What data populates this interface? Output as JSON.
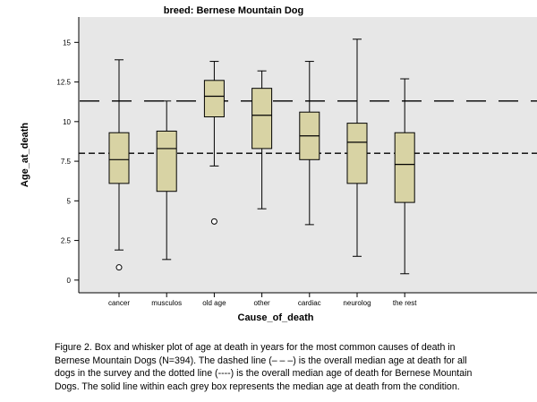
{
  "chart_data": {
    "type": "box",
    "title": "breed: Bernese Mountain Dog",
    "xlabel": "Cause_of_death",
    "ylabel": "Age_at_death",
    "ylim": [
      -0.8,
      16.6
    ],
    "yticks": [
      0,
      2.5,
      5,
      7.5,
      10,
      12.5,
      15
    ],
    "ytick_labels": [
      "0",
      "2.5",
      "5",
      "7.5",
      "10",
      "12.5",
      "15"
    ],
    "categories": [
      "cancer",
      "musculos",
      "old age",
      "other",
      "cardiac",
      "neurolog",
      "the rest"
    ],
    "boxes": [
      {
        "category": "cancer",
        "whisker_low": 1.9,
        "q1": 6.1,
        "median": 7.6,
        "q3": 9.3,
        "whisker_high": 13.9,
        "outliers": [
          0.8
        ]
      },
      {
        "category": "musculos",
        "whisker_low": 1.3,
        "q1": 5.6,
        "median": 8.3,
        "q3": 9.4,
        "whisker_high": 11.3,
        "outliers": []
      },
      {
        "category": "old age",
        "whisker_low": 7.2,
        "q1": 10.3,
        "median": 11.6,
        "q3": 12.6,
        "whisker_high": 13.8,
        "outliers": [
          3.7
        ]
      },
      {
        "category": "other",
        "whisker_low": 4.5,
        "q1": 8.3,
        "median": 10.4,
        "q3": 12.1,
        "whisker_high": 13.2,
        "outliers": []
      },
      {
        "category": "cardiac",
        "whisker_low": 3.5,
        "q1": 7.6,
        "median": 9.1,
        "q3": 10.6,
        "whisker_high": 13.8,
        "outliers": []
      },
      {
        "category": "neurolog",
        "whisker_low": 1.5,
        "q1": 6.1,
        "median": 8.7,
        "q3": 9.9,
        "whisker_high": 15.2,
        "outliers": []
      },
      {
        "category": "the rest",
        "whisker_low": 0.4,
        "q1": 4.9,
        "median": 7.3,
        "q3": 9.3,
        "whisker_high": 12.7,
        "outliers": []
      }
    ],
    "reference_lines": [
      {
        "value": 11.3,
        "style": "long-dash"
      },
      {
        "value": 8.0,
        "style": "short-dash"
      }
    ],
    "grid": false,
    "colors": {
      "box_fill": "#d8d3a4",
      "plot_bg": "#e7e7e7",
      "line": "#000000",
      "outlier_fill": "#ffffff"
    }
  },
  "caption": {
    "line1": "Figure 2.  Box and whisker plot of age at death in years for the most common causes of death in",
    "line2": "Bernese Mountain Dogs (N=394).  The dashed line (– – –) is the overall median age at death for all",
    "line3": "dogs in the survey and the dotted line (----) is the overall median age of death for Bernese Mountain",
    "line4": "Dogs.  The solid line within each grey box represents the median age at death from the condition."
  }
}
